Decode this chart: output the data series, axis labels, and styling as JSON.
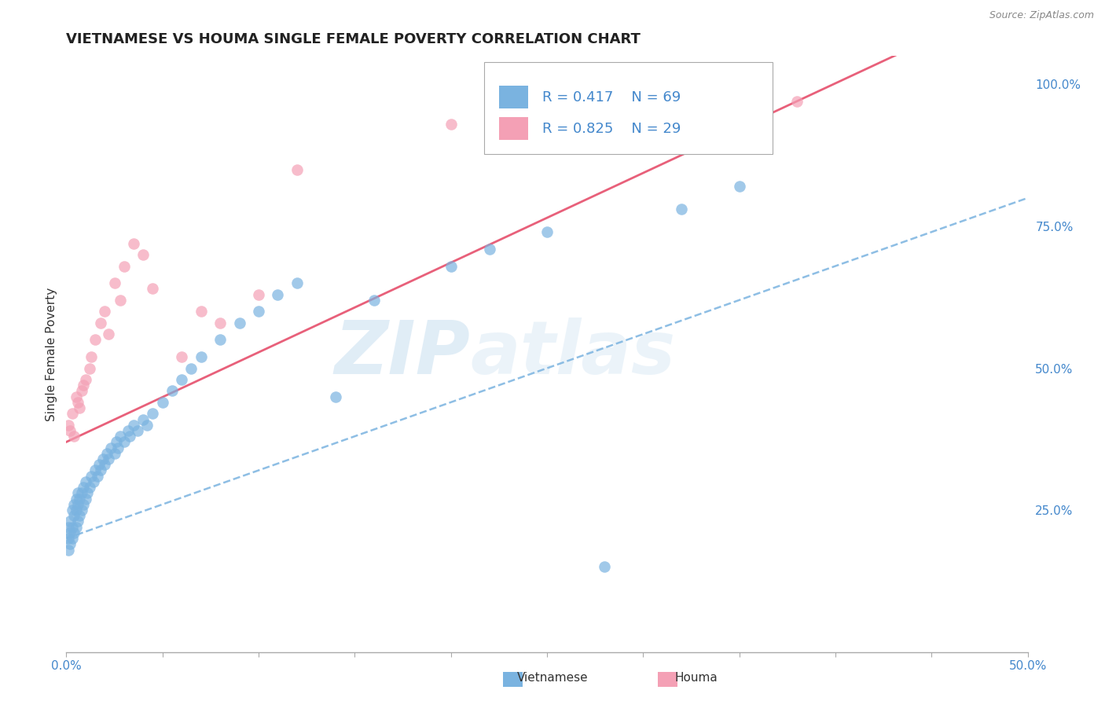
{
  "title": "VIETNAMESE VS HOUMA SINGLE FEMALE POVERTY CORRELATION CHART",
  "source": "Source: ZipAtlas.com",
  "ylabel": "Single Female Poverty",
  "xlim": [
    0.0,
    0.5
  ],
  "ylim": [
    0.0,
    1.05
  ],
  "xticks": [
    0.0,
    0.05,
    0.1,
    0.15,
    0.2,
    0.25,
    0.3,
    0.35,
    0.4,
    0.45,
    0.5
  ],
  "yticks_right": [
    0.25,
    0.5,
    0.75,
    1.0
  ],
  "ytick_right_labels": [
    "25.0%",
    "50.0%",
    "75.0%",
    "100.0%"
  ],
  "vietnamese_color": "#7ab3e0",
  "houma_color": "#f4a0b5",
  "trend_viet_color": "#7ab3e0",
  "trend_houma_color": "#e8607a",
  "tick_color": "#4488cc",
  "R_viet": 0.417,
  "N_viet": 69,
  "R_houma": 0.825,
  "N_houma": 29,
  "watermark_zip": "ZIP",
  "watermark_atlas": "atlas",
  "background_color": "#ffffff",
  "grid_color": "#cccccc",
  "title_fontsize": 13,
  "axis_label_fontsize": 11,
  "tick_fontsize": 11,
  "viet_trend_intercept": 0.2,
  "viet_trend_slope": 1.2,
  "houma_trend_intercept": 0.37,
  "houma_trend_slope": 1.58,
  "vietnamese_x": [
    0.001,
    0.001,
    0.001,
    0.002,
    0.002,
    0.002,
    0.003,
    0.003,
    0.003,
    0.004,
    0.004,
    0.004,
    0.005,
    0.005,
    0.005,
    0.006,
    0.006,
    0.006,
    0.007,
    0.007,
    0.008,
    0.008,
    0.009,
    0.009,
    0.01,
    0.01,
    0.011,
    0.012,
    0.013,
    0.014,
    0.015,
    0.016,
    0.017,
    0.018,
    0.019,
    0.02,
    0.021,
    0.022,
    0.023,
    0.025,
    0.026,
    0.027,
    0.028,
    0.03,
    0.032,
    0.033,
    0.035,
    0.037,
    0.04,
    0.042,
    0.045,
    0.05,
    0.055,
    0.06,
    0.065,
    0.07,
    0.08,
    0.09,
    0.1,
    0.11,
    0.12,
    0.14,
    0.16,
    0.2,
    0.22,
    0.25,
    0.28,
    0.32,
    0.35
  ],
  "vietnamese_y": [
    0.18,
    0.2,
    0.22,
    0.19,
    0.21,
    0.23,
    0.2,
    0.22,
    0.25,
    0.21,
    0.24,
    0.26,
    0.22,
    0.25,
    0.27,
    0.23,
    0.26,
    0.28,
    0.24,
    0.27,
    0.25,
    0.28,
    0.26,
    0.29,
    0.27,
    0.3,
    0.28,
    0.29,
    0.31,
    0.3,
    0.32,
    0.31,
    0.33,
    0.32,
    0.34,
    0.33,
    0.35,
    0.34,
    0.36,
    0.35,
    0.37,
    0.36,
    0.38,
    0.37,
    0.39,
    0.38,
    0.4,
    0.39,
    0.41,
    0.4,
    0.42,
    0.44,
    0.46,
    0.48,
    0.5,
    0.52,
    0.55,
    0.58,
    0.6,
    0.63,
    0.65,
    0.45,
    0.62,
    0.68,
    0.71,
    0.74,
    0.15,
    0.78,
    0.82
  ],
  "houma_x": [
    0.001,
    0.002,
    0.003,
    0.004,
    0.005,
    0.006,
    0.007,
    0.008,
    0.009,
    0.01,
    0.012,
    0.013,
    0.015,
    0.018,
    0.02,
    0.022,
    0.025,
    0.028,
    0.03,
    0.035,
    0.04,
    0.045,
    0.06,
    0.07,
    0.08,
    0.1,
    0.12,
    0.2,
    0.38
  ],
  "houma_y": [
    0.4,
    0.39,
    0.42,
    0.38,
    0.45,
    0.44,
    0.43,
    0.46,
    0.47,
    0.48,
    0.5,
    0.52,
    0.55,
    0.58,
    0.6,
    0.56,
    0.65,
    0.62,
    0.68,
    0.72,
    0.7,
    0.64,
    0.52,
    0.6,
    0.58,
    0.63,
    0.85,
    0.93,
    0.97
  ]
}
